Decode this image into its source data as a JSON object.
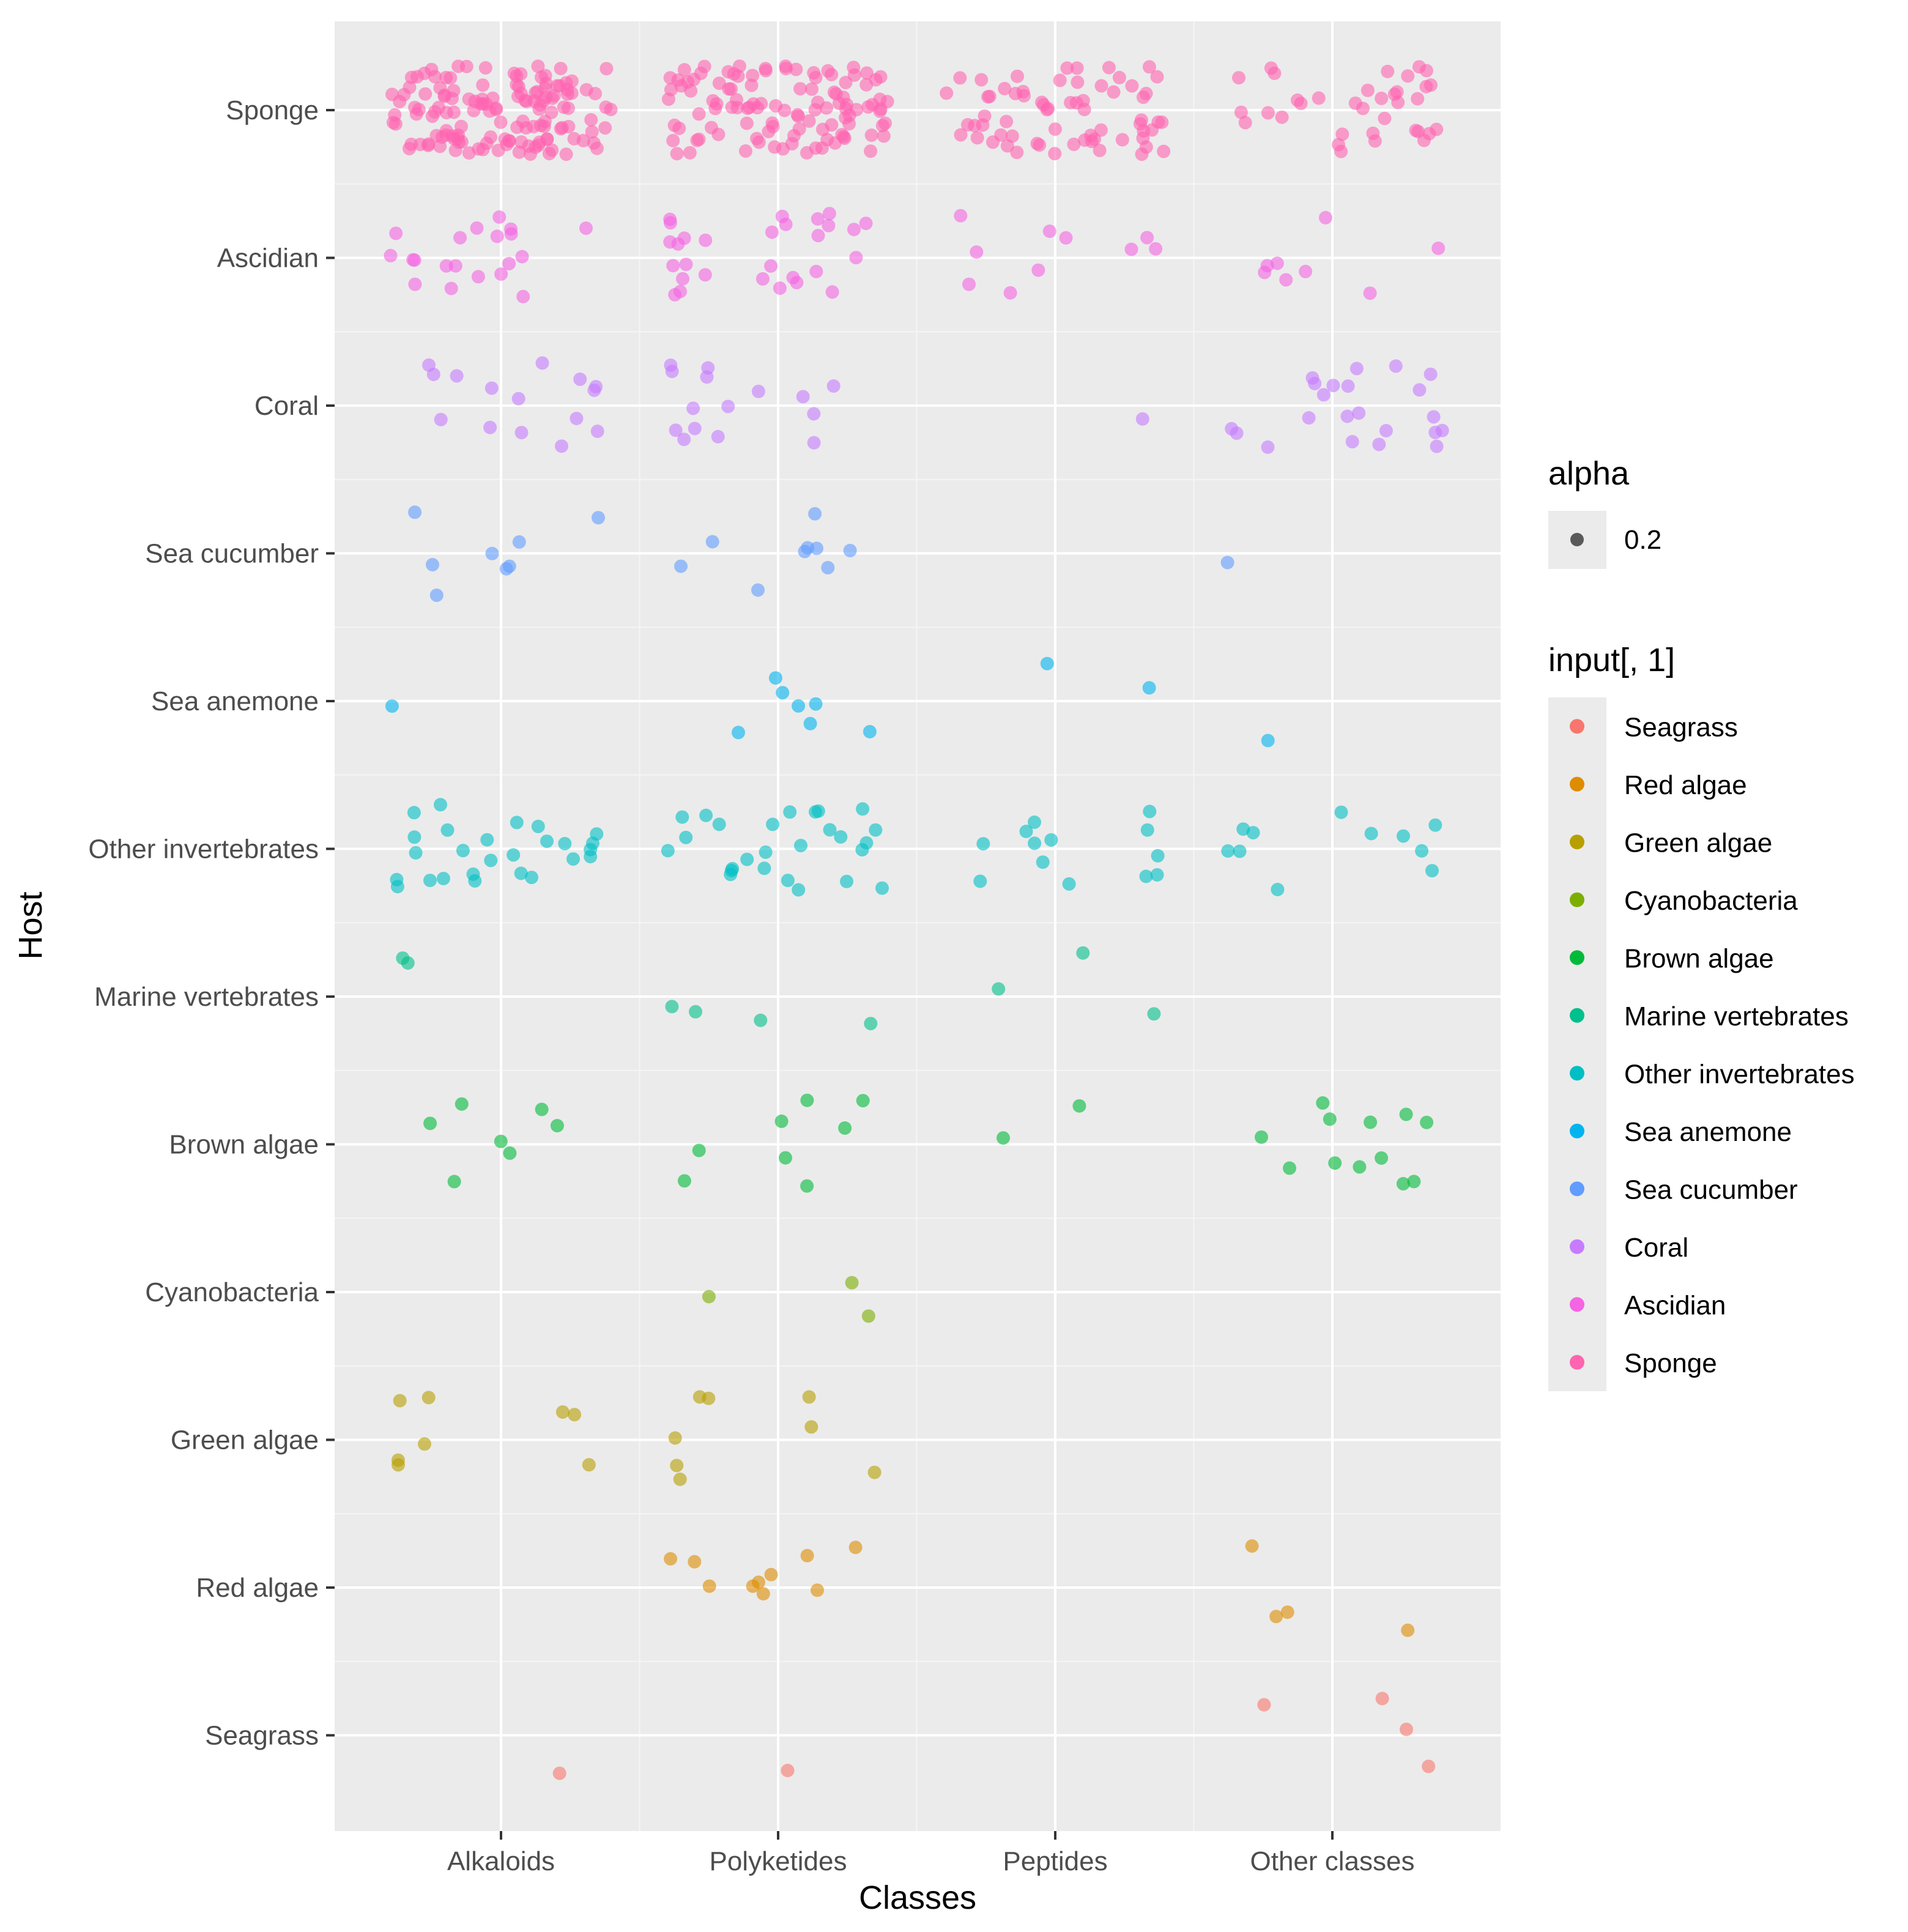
{
  "chart_data": {
    "type": "scatter",
    "subtype": "jitter",
    "title": "",
    "xlabel": "Classes",
    "ylabel": "Host",
    "x_categories": [
      "Alkaloids",
      "Polyketides",
      "Peptides",
      "Other classes"
    ],
    "y_categories": [
      "Seagrass",
      "Red algae",
      "Green algae",
      "Cyanobacteria",
      "Brown algae",
      "Marine vertebrates",
      "Other invertebrates",
      "Sea anemone",
      "Sea cucumber",
      "Coral",
      "Ascidian",
      "Sponge"
    ],
    "grid": true,
    "legend_position": "right",
    "legends": [
      {
        "title": "alpha",
        "entries": [
          {
            "label": "0.2",
            "color": "#5a5a5a"
          }
        ]
      },
      {
        "title": "input[, 1]",
        "entries": [
          {
            "label": "Seagrass",
            "color": "#F8766D"
          },
          {
            "label": "Red algae",
            "color": "#DE8C00"
          },
          {
            "label": "Green algae",
            "color": "#B79F00"
          },
          {
            "label": "Cyanobacteria",
            "color": "#7CAE00"
          },
          {
            "label": "Brown algae",
            "color": "#00BA38"
          },
          {
            "label": "Marine vertebrates",
            "color": "#00C08B"
          },
          {
            "label": "Other invertebrates",
            "color": "#00BFC4"
          },
          {
            "label": "Sea anemone",
            "color": "#00B4F0"
          },
          {
            "label": "Sea cucumber",
            "color": "#619CFF"
          },
          {
            "label": "Coral",
            "color": "#C77CFF"
          },
          {
            "label": "Ascidian",
            "color": "#F564E3"
          },
          {
            "label": "Sponge",
            "color": "#FF64B0"
          }
        ]
      }
    ],
    "series": [
      {
        "host": "Sponge",
        "counts": {
          "Alkaloids": 140,
          "Polyketides": 110,
          "Peptides": 65,
          "Other classes": 35
        }
      },
      {
        "host": "Ascidian",
        "counts": {
          "Alkaloids": 20,
          "Polyketides": 29,
          "Peptides": 10,
          "Other classes": 8
        }
      },
      {
        "host": "Coral",
        "counts": {
          "Alkaloids": 15,
          "Polyketides": 15,
          "Peptides": 1,
          "Other classes": 22
        }
      },
      {
        "host": "Sea cucumber",
        "counts": {
          "Alkaloids": 8,
          "Polyketides": 9,
          "Peptides": 0,
          "Other classes": 1
        }
      },
      {
        "host": "Sea anemone",
        "counts": {
          "Alkaloids": 1,
          "Polyketides": 7,
          "Peptides": 2,
          "Other classes": 1
        }
      },
      {
        "host": "Other invertebrates",
        "counts": {
          "Alkaloids": 26,
          "Polyketides": 26,
          "Peptides": 13,
          "Other classes": 11
        }
      },
      {
        "host": "Marine vertebrates",
        "counts": {
          "Alkaloids": 2,
          "Polyketides": 4,
          "Peptides": 3,
          "Other classes": 0
        }
      },
      {
        "host": "Brown algae",
        "counts": {
          "Alkaloids": 7,
          "Polyketides": 8,
          "Peptides": 2,
          "Other classes": 12
        }
      },
      {
        "host": "Cyanobacteria",
        "counts": {
          "Alkaloids": 0,
          "Polyketides": 3,
          "Peptides": 0,
          "Other classes": 0
        }
      },
      {
        "host": "Green algae",
        "counts": {
          "Alkaloids": 8,
          "Polyketides": 8,
          "Peptides": 0,
          "Other classes": 0
        }
      },
      {
        "host": "Red algae",
        "counts": {
          "Alkaloids": 0,
          "Polyketides": 10,
          "Peptides": 0,
          "Other classes": 4
        }
      },
      {
        "host": "Seagrass",
        "counts": {
          "Alkaloids": 1,
          "Polyketides": 1,
          "Peptides": 0,
          "Other classes": 4
        }
      }
    ]
  }
}
